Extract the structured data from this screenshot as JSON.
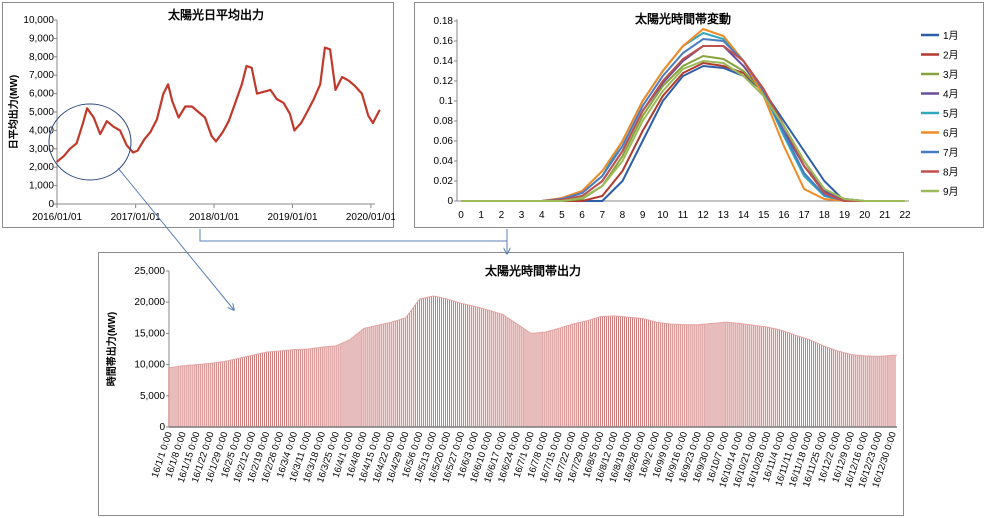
{
  "chart_data": [
    {
      "type": "line",
      "title": "太陽光日平均出力",
      "ylabel": "日平均出力(MW)",
      "xlabel": "",
      "ylim": [
        0,
        10000
      ],
      "yticks": [
        "0",
        "1,000",
        "2,000",
        "3,000",
        "4,000",
        "5,000",
        "6,000",
        "7,000",
        "8,000",
        "9,000",
        "10,000"
      ],
      "xticks": [
        "2016/01/01",
        "2017/01/01",
        "2018/01/01",
        "2019/01/01",
        "2020/01/01"
      ],
      "series": [
        {
          "color": "#c0392b",
          "x": [
            "2016-01-01",
            "2016-02-01",
            "2016-03-01",
            "2016-04-01",
            "2016-05-01",
            "2016-05-20",
            "2016-06-20",
            "2016-07-20",
            "2016-08-20",
            "2016-09-20",
            "2016-10-20",
            "2016-11-20",
            "2016-12-20",
            "2017-01-10",
            "2017-02-10",
            "2017-03-10",
            "2017-04-10",
            "2017-05-10",
            "2017-06-01",
            "2017-06-20",
            "2017-07-20",
            "2017-08-20",
            "2017-09-20",
            "2017-10-20",
            "2017-11-20",
            "2017-12-20",
            "2018-01-10",
            "2018-02-10",
            "2018-03-10",
            "2018-04-10",
            "2018-05-10",
            "2018-06-01",
            "2018-06-25",
            "2018-07-20",
            "2018-08-20",
            "2018-09-20",
            "2018-10-20",
            "2018-11-20",
            "2018-12-20",
            "2019-01-10",
            "2019-02-10",
            "2019-03-10",
            "2019-04-10",
            "2019-05-10",
            "2019-06-01",
            "2019-06-25",
            "2019-07-20",
            "2019-08-20",
            "2019-09-20",
            "2019-10-20",
            "2019-11-20",
            "2019-12-20",
            "2020-01-10",
            "2020-02-10"
          ],
          "y": [
            2300,
            2600,
            3000,
            3300,
            4400,
            5200,
            4700,
            3800,
            4500,
            4200,
            4000,
            3200,
            2800,
            2900,
            3500,
            3900,
            4600,
            6000,
            6500,
            5600,
            4700,
            5300,
            5300,
            5000,
            4700,
            3700,
            3400,
            3900,
            4500,
            5500,
            6500,
            7500,
            7400,
            6000,
            6100,
            6200,
            5700,
            5500,
            4900,
            4000,
            4400,
            5000,
            5700,
            6500,
            8500,
            8400,
            6200,
            6900,
            6700,
            6400,
            6000,
            4800,
            4400,
            5100
          ]
        }
      ]
    },
    {
      "type": "line",
      "title": "太陽光時間帯変動",
      "xlabel": "",
      "ylabel": "",
      "ylim": [
        0,
        0.18
      ],
      "yticks": [
        "0",
        "0.02",
        "0.04",
        "0.06",
        "0.08",
        "0.1",
        "0.12",
        "0.14",
        "0.16",
        "0.18"
      ],
      "x": [
        0,
        1,
        2,
        3,
        4,
        5,
        6,
        7,
        8,
        9,
        10,
        11,
        12,
        13,
        14,
        15,
        16,
        17,
        18,
        19,
        20,
        21,
        22
      ],
      "legend_position": "right",
      "series": [
        {
          "name": "1月",
          "color": "#2e5ea8",
          "values": [
            0,
            0,
            0,
            0,
            0,
            0,
            0,
            0,
            0.02,
            0.06,
            0.1,
            0.125,
            0.135,
            0.133,
            0.125,
            0.11,
            0.08,
            0.05,
            0.02,
            0,
            0,
            0,
            0
          ]
        },
        {
          "name": "2月",
          "color": "#b03a2e",
          "values": [
            0,
            0,
            0,
            0,
            0,
            0,
            0,
            0.005,
            0.03,
            0.07,
            0.105,
            0.128,
            0.138,
            0.135,
            0.128,
            0.11,
            0.075,
            0.04,
            0.01,
            0,
            0,
            0,
            0
          ]
        },
        {
          "name": "3月",
          "color": "#86a33b",
          "values": [
            0,
            0,
            0,
            0,
            0,
            0,
            0.002,
            0.015,
            0.045,
            0.085,
            0.115,
            0.135,
            0.145,
            0.142,
            0.13,
            0.108,
            0.075,
            0.04,
            0.012,
            0.002,
            0,
            0,
            0
          ]
        },
        {
          "name": "4月",
          "color": "#6b4e9b",
          "values": [
            0,
            0,
            0,
            0,
            0,
            0.001,
            0.005,
            0.02,
            0.05,
            0.09,
            0.118,
            0.14,
            0.155,
            0.155,
            0.135,
            0.108,
            0.07,
            0.035,
            0.01,
            0.002,
            0,
            0,
            0
          ]
        },
        {
          "name": "5月",
          "color": "#33a9c0",
          "values": [
            0,
            0,
            0,
            0,
            0,
            0.002,
            0.008,
            0.025,
            0.06,
            0.1,
            0.13,
            0.155,
            0.168,
            0.162,
            0.14,
            0.108,
            0.065,
            0.025,
            0.005,
            0,
            0,
            0,
            0
          ]
        },
        {
          "name": "6月",
          "color": "#f08a24",
          "values": [
            0,
            0,
            0,
            0,
            0,
            0.003,
            0.01,
            0.03,
            0.06,
            0.1,
            0.13,
            0.155,
            0.172,
            0.165,
            0.14,
            0.105,
            0.055,
            0.012,
            0.002,
            0,
            0,
            0,
            0
          ]
        },
        {
          "name": "7月",
          "color": "#4a7cc0",
          "values": [
            0,
            0,
            0,
            0,
            0,
            0.002,
            0.008,
            0.025,
            0.055,
            0.095,
            0.125,
            0.148,
            0.162,
            0.16,
            0.14,
            0.11,
            0.068,
            0.028,
            0.006,
            0,
            0,
            0,
            0
          ]
        },
        {
          "name": "8月",
          "color": "#c0504d",
          "values": [
            0,
            0,
            0,
            0,
            0,
            0.001,
            0.005,
            0.02,
            0.05,
            0.09,
            0.12,
            0.142,
            0.155,
            0.155,
            0.14,
            0.112,
            0.075,
            0.035,
            0.008,
            0,
            0,
            0,
            0
          ]
        },
        {
          "name": "9月",
          "color": "#9bbb59",
          "values": [
            0,
            0,
            0,
            0,
            0,
            0,
            0.003,
            0.015,
            0.04,
            0.08,
            0.11,
            0.132,
            0.14,
            0.138,
            0.125,
            0.105,
            0.075,
            0.04,
            0.012,
            0.002,
            0,
            0,
            0
          ]
        }
      ]
    },
    {
      "type": "area",
      "title": "太陽光時間帯出力",
      "ylabel": "時間帯出力(MW)",
      "xlabel": "",
      "ylim": [
        0,
        25000
      ],
      "yticks": [
        "0",
        "5,000",
        "10,000",
        "15,000",
        "20,000",
        "25,000"
      ],
      "xticks": [
        "16/1/1 0:00",
        "16/1/8 0:00",
        "16/1/15 0:00",
        "16/1/22 0:00",
        "16/1/29 0:00",
        "16/2/5 0:00",
        "16/2/12 0:00",
        "16/2/19 0:00",
        "16/2/26 0:00",
        "16/3/4 0:00",
        "16/3/11 0:00",
        "16/3/18 0:00",
        "16/3/25 0:00",
        "16/4/1 0:00",
        "16/4/8 0:00",
        "16/4/15 0:00",
        "16/4/22 0:00",
        "16/4/29 0:00",
        "16/5/6 0:00",
        "16/5/13 0:00",
        "16/5/20 0:00",
        "16/5/27 0:00",
        "16/6/3 0:00",
        "16/6/10 0:00",
        "16/6/17 0:00",
        "16/6/24 0:00",
        "16/7/1 0:00",
        "16/7/8 0:00",
        "16/7/15 0:00",
        "16/7/22 0:00",
        "16/7/29 0:00",
        "16/8/5 0:00",
        "16/8/12 0:00",
        "16/8/19 0:00",
        "16/8/26 0:00",
        "16/9/2 0:00",
        "16/9/9 0:00",
        "16/9/16 0:00",
        "16/9/23 0:00",
        "16/9/30 0:00",
        "16/10/7 0:00",
        "16/10/14 0:00",
        "16/10/21 0:00",
        "16/10/28 0:00",
        "16/11/4 0:00",
        "16/11/11 0:00",
        "16/11/18 0:00",
        "16/11/25 0:00",
        "16/12/2 0:00",
        "16/12/9 0:00",
        "16/12/16 0:00",
        "16/12/23 0:00",
        "16/12/30 0:00"
      ],
      "envelope_peak_mw": [
        9500,
        9800,
        10000,
        10200,
        10500,
        11000,
        11500,
        12000,
        12200,
        12400,
        12500,
        12800,
        13000,
        14000,
        15800,
        16300,
        16800,
        17500,
        20500,
        21000,
        20500,
        19800,
        19300,
        18700,
        18000,
        16500,
        15000,
        15200,
        15800,
        16500,
        17000,
        17700,
        17800,
        17600,
        17400,
        16800,
        16500,
        16400,
        16400,
        16600,
        16800,
        16600,
        16300,
        16000,
        15500,
        14700,
        14000,
        13000,
        12200,
        11600,
        11400,
        11300,
        11500
      ],
      "sample_step_days": 2,
      "fill": "#c0504d"
    }
  ],
  "arrows": "zoom-links"
}
